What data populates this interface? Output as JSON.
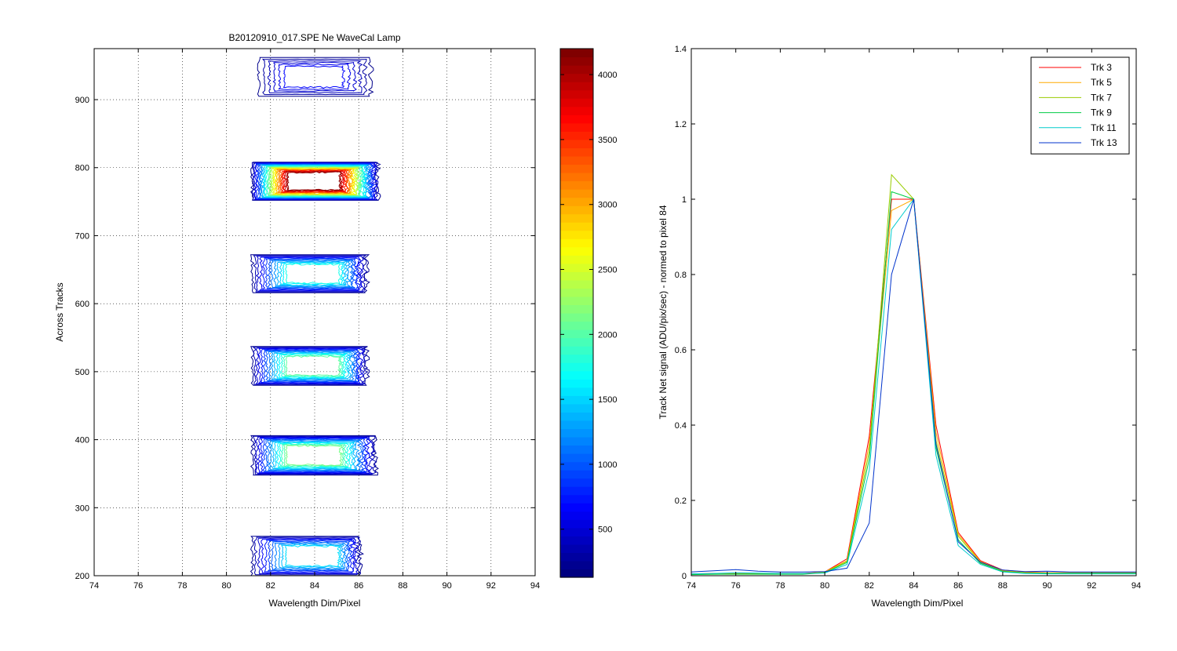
{
  "chart_data": [
    {
      "type": "contour",
      "title": "B20120910_017.SPE  Ne WaveCal Lamp",
      "xlabel": "Wavelength Dim/Pixel",
      "ylabel": "Across Tracks",
      "xlim": [
        74,
        94
      ],
      "ylim": [
        200,
        975
      ],
      "x_ticks": [
        74,
        76,
        78,
        80,
        82,
        84,
        86,
        88,
        90,
        92,
        94
      ],
      "y_ticks": [
        200,
        300,
        400,
        500,
        600,
        700,
        800,
        900
      ],
      "grid": true,
      "colormap": "jet",
      "colorbar": {
        "range": [
          130,
          4200
        ],
        "ticks": [
          500,
          1000,
          1500,
          2000,
          2500,
          3000,
          3500,
          4000
        ]
      },
      "blobs": [
        {
          "track_range": [
            905,
            962
          ],
          "x_range": [
            81.5,
            86.5
          ],
          "peak": 700
        },
        {
          "track_range": [
            752,
            808
          ],
          "x_range": [
            81.2,
            86.8
          ],
          "peak": 4200
        },
        {
          "track_range": [
            616,
            672
          ],
          "x_range": [
            81.2,
            86.3
          ],
          "peak": 1800
        },
        {
          "track_range": [
            480,
            537
          ],
          "x_range": [
            81.2,
            86.3
          ],
          "peak": 2100
        },
        {
          "track_range": [
            348,
            406
          ],
          "x_range": [
            81.2,
            86.7
          ],
          "peak": 2200
        },
        {
          "track_range": [
            200,
            258
          ],
          "x_range": [
            81.2,
            86.0
          ],
          "peak": 1600
        }
      ]
    },
    {
      "type": "line",
      "xlabel": "Wavelength Dim/Pixel",
      "ylabel": "Track Net signal (ADU/pix/sec) - normed to pixel 84",
      "xlim": [
        74,
        94
      ],
      "ylim": [
        0,
        1.4
      ],
      "x_ticks": [
        74,
        76,
        78,
        80,
        82,
        84,
        86,
        88,
        90,
        92,
        94
      ],
      "y_ticks": [
        0,
        0.2,
        0.4,
        0.6,
        0.8,
        1,
        1.2,
        1.4
      ],
      "grid": false,
      "legend": "top-right",
      "x": [
        74,
        75,
        76,
        77,
        78,
        79,
        80,
        81,
        82,
        83,
        84,
        85,
        86,
        87,
        88,
        89,
        90,
        91,
        92,
        93,
        94
      ],
      "series": [
        {
          "name": "Trk 3",
          "color": "#ff0000",
          "values": [
            0.005,
            0.006,
            0.006,
            0.006,
            0.006,
            0.006,
            0.01,
            0.045,
            0.37,
            1.0,
            1.0,
            0.4,
            0.115,
            0.04,
            0.015,
            0.01,
            0.008,
            0.008,
            0.008,
            0.008,
            0.008
          ]
        },
        {
          "name": "Trk 5",
          "color": "#ffaa00",
          "values": [
            0.004,
            0.005,
            0.005,
            0.005,
            0.005,
            0.005,
            0.01,
            0.04,
            0.35,
            0.97,
            1.0,
            0.38,
            0.11,
            0.038,
            0.013,
            0.009,
            0.007,
            0.007,
            0.007,
            0.007,
            0.007
          ]
        },
        {
          "name": "Trk 7",
          "color": "#99cc00",
          "values": [
            0.004,
            0.004,
            0.005,
            0.005,
            0.005,
            0.005,
            0.009,
            0.038,
            0.33,
            1.065,
            1.0,
            0.36,
            0.105,
            0.035,
            0.012,
            0.008,
            0.007,
            0.007,
            0.007,
            0.007,
            0.007
          ]
        },
        {
          "name": "Trk 9",
          "color": "#00cc44",
          "values": [
            0.003,
            0.004,
            0.004,
            0.004,
            0.004,
            0.004,
            0.008,
            0.035,
            0.31,
            1.02,
            1.0,
            0.34,
            0.095,
            0.033,
            0.011,
            0.007,
            0.006,
            0.006,
            0.006,
            0.006,
            0.006
          ]
        },
        {
          "name": "Trk 11",
          "color": "#00cccc",
          "values": [
            0.005,
            0.006,
            0.008,
            0.007,
            0.006,
            0.006,
            0.007,
            0.03,
            0.28,
            0.92,
            1.0,
            0.32,
            0.08,
            0.03,
            0.01,
            0.006,
            0.005,
            0.005,
            0.005,
            0.005,
            0.005
          ]
        },
        {
          "name": "Trk 13",
          "color": "#0033cc",
          "values": [
            0.01,
            0.013,
            0.016,
            0.012,
            0.01,
            0.01,
            0.011,
            0.02,
            0.14,
            0.8,
            1.0,
            0.35,
            0.09,
            0.036,
            0.015,
            0.011,
            0.012,
            0.01,
            0.01,
            0.01,
            0.01
          ]
        }
      ]
    }
  ]
}
